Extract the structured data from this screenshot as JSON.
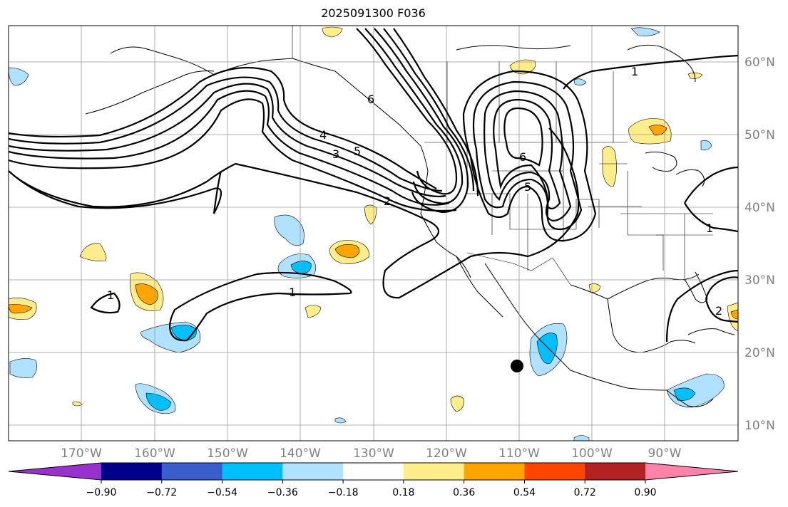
{
  "title": "2025091300 F036",
  "lat_labels": [
    "60°N",
    "50°N",
    "40°N",
    "30°N",
    "20°N",
    "10°N"
  ],
  "lon_labels": [
    "170°W",
    "160°W",
    "150°W",
    "140°W",
    "130°W",
    "120°W",
    "110°W",
    "100°W",
    "90°W"
  ],
  "colorbar": {
    "tick_labels": [
      "−0.90",
      "−0.72",
      "−0.54",
      "−0.36",
      "−0.18",
      "0.18",
      "0.36",
      "0.54",
      "0.72",
      "0.90"
    ],
    "colors": [
      "#9932CC",
      "#00008B",
      "#3A5FCD",
      "#00BFFF",
      "#B0E2FF",
      "#FFFFFF",
      "#FFEC8B",
      "#FFA500",
      "#FF4500",
      "#B22222",
      "#FF82AB"
    ]
  },
  "contour_labels": [
    "1",
    "1",
    "2",
    "3",
    "4",
    "5",
    "6",
    "5",
    "1",
    "1",
    "2",
    "6"
  ]
}
